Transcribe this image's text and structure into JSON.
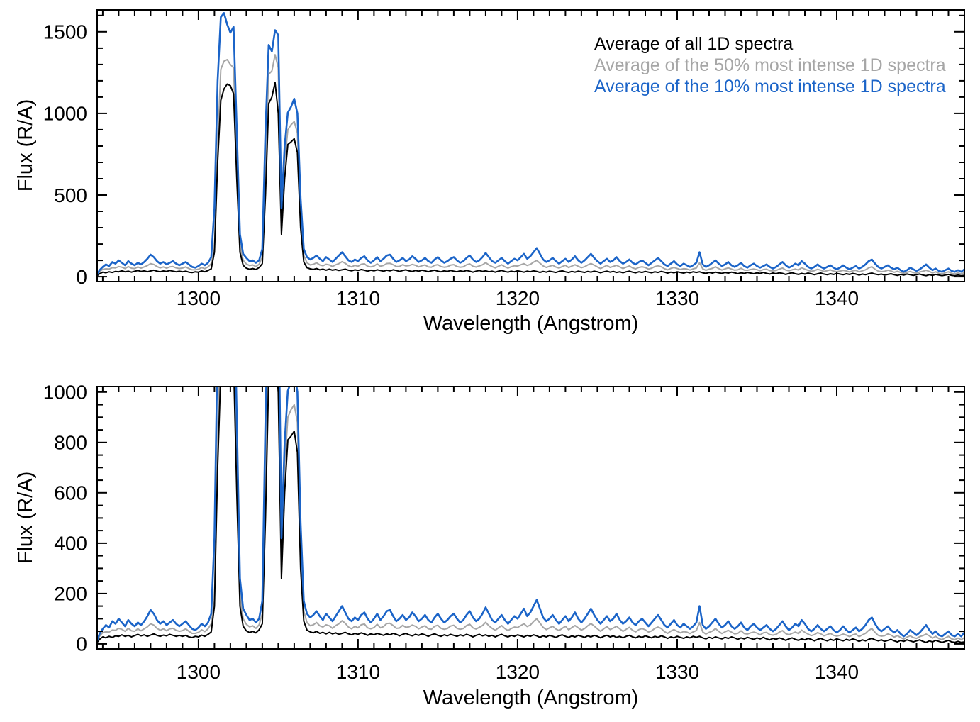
{
  "figure_name": "average-1d-spectra-figure",
  "chart_data": {
    "type": "line",
    "xlabel": "Wavelength (Angstrom)",
    "ylabel": "Flux (R/A)",
    "xlim": [
      1293.65,
      1348.0
    ],
    "xticks": [
      1300,
      1310,
      1320,
      1330,
      1340
    ],
    "x_minor_step": 1,
    "x_start": 1293.6,
    "x_step": 0.2,
    "grid": false,
    "legend_position": "top-right-inside",
    "panels": [
      {
        "name": "full-range",
        "ylim": [
          -30,
          1634
        ],
        "yticks": [
          0,
          500,
          1000,
          1500
        ],
        "y_minor_step": 100
      },
      {
        "name": "zoomed",
        "ylim": [
          -20,
          1022
        ],
        "yticks": [
          0,
          200,
          400,
          600,
          800,
          1000
        ],
        "y_minor_step": 50
      }
    ],
    "series": [
      {
        "name": "Average of all 1D spectra",
        "color": "#000000",
        "width": 2.0,
        "values": [
          2,
          18,
          28,
          24,
          30,
          26,
          32,
          30,
          36,
          30,
          34,
          28,
          33,
          38,
          32,
          36,
          30,
          35,
          40,
          34,
          30,
          35,
          32,
          38,
          34,
          30,
          34,
          30,
          34,
          28,
          25,
          30,
          28,
          35,
          30,
          38,
          48,
          150,
          700,
          1080,
          1150,
          1180,
          1170,
          1120,
          600,
          150,
          70,
          52,
          45,
          50,
          44,
          56,
          80,
          500,
          1060,
          1100,
          1190,
          1000,
          260,
          600,
          810,
          825,
          845,
          760,
          300,
          90,
          55,
          48,
          44,
          50,
          42,
          46,
          40,
          46,
          40,
          44,
          38,
          42,
          46,
          40,
          36,
          42,
          38,
          44,
          40,
          34,
          40,
          36,
          42,
          38,
          34,
          40,
          36,
          42,
          38,
          32,
          38,
          42,
          36,
          32,
          38,
          34,
          40,
          36,
          30,
          36,
          40,
          34,
          30,
          36,
          32,
          38,
          34,
          30,
          36,
          32,
          38,
          34,
          28,
          34,
          38,
          32,
          36,
          30,
          34,
          28,
          34,
          38,
          32,
          28,
          34,
          30,
          36,
          32,
          28,
          34,
          30,
          36,
          32,
          26,
          32,
          28,
          34,
          30,
          26,
          32,
          36,
          30,
          26,
          32,
          28,
          34,
          30,
          26,
          32,
          28,
          34,
          30,
          24,
          30,
          34,
          28,
          32,
          26,
          30,
          24,
          30,
          34,
          28,
          24,
          30,
          26,
          32,
          28,
          24,
          30,
          26,
          32,
          28,
          22,
          28,
          24,
          30,
          26,
          22,
          28,
          24,
          30,
          26,
          30,
          24,
          20,
          26,
          22,
          28,
          24,
          20,
          26,
          22,
          28,
          24,
          18,
          24,
          20,
          26,
          22,
          18,
          24,
          20,
          26,
          20,
          16,
          22,
          18,
          24,
          20,
          14,
          20,
          24,
          18,
          14,
          20,
          16,
          22,
          18,
          12,
          18,
          22,
          16,
          12,
          18,
          14,
          20,
          16,
          12,
          18,
          14,
          20,
          16,
          10,
          16,
          12,
          18,
          22,
          16,
          12,
          16,
          10,
          14,
          18,
          12,
          8,
          14,
          10,
          16,
          12,
          8,
          12,
          16,
          10,
          6,
          12,
          8,
          14,
          10,
          6,
          10,
          14,
          8,
          6,
          10,
          6,
          8,
          6
        ]
      },
      {
        "name": "Average of the 50% most intense 1D spectra",
        "color": "#a6a6a6",
        "width": 2.0,
        "values": [
          4,
          30,
          45,
          48,
          47,
          55,
          54,
          62,
          58,
          50,
          62,
          52,
          50,
          60,
          52,
          60,
          68,
          80,
          75,
          62,
          54,
          60,
          52,
          60,
          62,
          54,
          50,
          53,
          60,
          50,
          42,
          42,
          46,
          56,
          49,
          60,
          80,
          170,
          800,
          1270,
          1320,
          1330,
          1300,
          1280,
          700,
          200,
          100,
          78,
          68,
          72,
          62,
          76,
          120,
          700,
          1240,
          1260,
          1360,
          1280,
          330,
          700,
          900,
          930,
          950,
          880,
          380,
          130,
          85,
          72,
          76,
          85,
          72,
          67,
          76,
          72,
          62,
          73,
          80,
          92,
          82,
          67,
          60,
          70,
          64,
          76,
          79,
          64,
          60,
          65,
          78,
          64,
          69,
          81,
          82,
          73,
          62,
          63,
          74,
          66,
          68,
          75,
          70,
          60,
          67,
          72,
          60,
          58,
          70,
          74,
          62,
          58,
          61,
          71,
          74,
          62,
          58,
          61,
          73,
          78,
          64,
          59,
          66,
          73,
          86,
          72,
          62,
          54,
          64,
          73,
          61,
          53,
          61,
          67,
          65,
          73,
          80,
          69,
          75,
          89,
          100,
          83,
          66,
          57,
          64,
          70,
          59,
          53,
          62,
          70,
          56,
          65,
          73,
          64,
          55,
          61,
          72,
          81,
          71,
          60,
          50,
          60,
          69,
          57,
          63,
          70,
          60,
          50,
          58,
          66,
          54,
          48,
          57,
          61,
          56,
          47,
          52,
          62,
          67,
          61,
          49,
          42,
          51,
          57,
          50,
          44,
          49,
          47,
          41,
          48,
          53,
          85,
          48,
          39,
          46,
          51,
          61,
          50,
          41,
          48,
          54,
          47,
          40,
          42,
          52,
          41,
          39,
          44,
          47,
          43,
          36,
          44,
          46,
          37,
          35,
          38,
          47,
          53,
          41,
          36,
          42,
          47,
          41,
          55,
          46,
          39,
          33,
          37,
          45,
          40,
          32,
          37,
          42,
          34,
          31,
          34,
          39,
          35,
          29,
          36,
          39,
          29,
          36,
          42,
          54,
          61,
          46,
          34,
          31,
          33,
          40,
          35,
          27,
          33,
          26,
          19,
          27,
          32,
          25,
          22,
          29,
          33,
          39,
          32,
          23,
          30,
          21,
          17,
          24,
          30,
          20,
          17,
          23,
          17,
          25,
          19
        ]
      },
      {
        "name": "Average of the 10% most intense 1D spectra",
        "color": "#1b64c8",
        "width": 2.6,
        "values": [
          5,
          40,
          60,
          75,
          65,
          90,
          80,
          100,
          85,
          70,
          95,
          80,
          70,
          85,
          75,
          90,
          110,
          135,
          120,
          95,
          80,
          90,
          75,
          85,
          95,
          80,
          70,
          80,
          90,
          75,
          60,
          55,
          65,
          80,
          70,
          85,
          120,
          420,
          1200,
          1590,
          1615,
          1545,
          1495,
          1530,
          900,
          260,
          140,
          115,
          95,
          100,
          85,
          100,
          170,
          900,
          1420,
          1380,
          1510,
          1480,
          420,
          800,
          1005,
          1040,
          1090,
          1000,
          480,
          170,
          120,
          105,
          115,
          130,
          110,
          95,
          120,
          105,
          90,
          110,
          130,
          150,
          125,
          100,
          90,
          105,
          95,
          115,
          125,
          100,
          85,
          100,
          120,
          95,
          110,
          130,
          135,
          110,
          90,
          100,
          115,
          95,
          105,
          125,
          110,
          90,
          100,
          115,
          95,
          85,
          105,
          120,
          100,
          85,
          95,
          110,
          120,
          100,
          85,
          95,
          115,
          130,
          105,
          90,
          100,
          120,
          145,
          120,
          95,
          85,
          100,
          115,
          95,
          80,
          95,
          110,
          100,
          120,
          140,
          110,
          125,
          150,
          175,
          140,
          105,
          90,
          100,
          115,
          95,
          80,
          95,
          110,
          90,
          105,
          125,
          100,
          85,
          100,
          120,
          140,
          115,
          95,
          80,
          95,
          110,
          90,
          100,
          120,
          95,
          80,
          90,
          105,
          85,
          75,
          90,
          100,
          85,
          70,
          85,
          100,
          115,
          95,
          75,
          65,
          80,
          95,
          75,
          65,
          80,
          70,
          60,
          70,
          85,
          150,
          75,
          60,
          70,
          85,
          100,
          80,
          65,
          75,
          90,
          70,
          60,
          70,
          85,
          65,
          55,
          70,
          80,
          65,
          55,
          65,
          75,
          60,
          50,
          60,
          75,
          90,
          70,
          55,
          65,
          80,
          70,
          95,
          80,
          60,
          50,
          60,
          75,
          60,
          50,
          60,
          70,
          55,
          45,
          55,
          70,
          55,
          45,
          55,
          65,
          50,
          60,
          75,
          95,
          105,
          80,
          60,
          50,
          60,
          70,
          55,
          45,
          55,
          40,
          30,
          40,
          55,
          45,
          35,
          45,
          60,
          75,
          55,
          40,
          50,
          35,
          30,
          40,
          50,
          35,
          30,
          40,
          30,
          45,
          35
        ]
      }
    ]
  },
  "legend": {
    "entries": [
      {
        "label": "Average of all 1D spectra",
        "color": "#000000"
      },
      {
        "label": "Average of the 50% most intense 1D spectra",
        "color": "#a6a6a6"
      },
      {
        "label": "Average of the 10% most intense 1D spectra",
        "color": "#1b64c8"
      }
    ]
  },
  "colors": {
    "background": "#ffffff",
    "axis": "#000000",
    "blue_accent": "#1b64c8",
    "gray_accent": "#a6a6a6"
  }
}
